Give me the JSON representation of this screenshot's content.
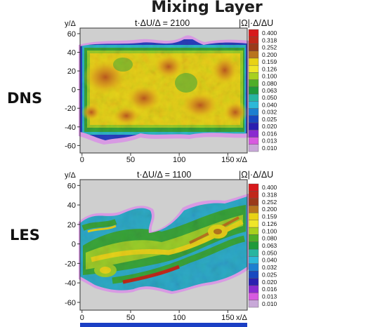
{
  "title": "Mixing Layer",
  "colors": {
    "background_field": "#cfcfcf",
    "accent_bottom_bar": "#1b3fc4"
  },
  "colorbar_values": [
    "0.400",
    "0.318",
    "0.252",
    "0.200",
    "0.159",
    "0.126",
    "0.100",
    "0.080",
    "0.063",
    "0.050",
    "0.040",
    "0.032",
    "0.025",
    "0.020",
    "0.016",
    "0.013",
    "0.010"
  ],
  "colorbar_colors": [
    "#d7191c",
    "#c0281a",
    "#9a3a1a",
    "#b8741e",
    "#e9d215",
    "#f0e628",
    "#a8d01e",
    "#4fae28",
    "#1f9a3a",
    "#26b5a0",
    "#2cb8d8",
    "#1c7fd0",
    "#1848c0",
    "#2a1fb0",
    "#8a2ad0",
    "#d85ae0",
    "#c8a8d8"
  ],
  "panels": [
    {
      "id": "dns",
      "label": "DNS",
      "time_label": "t·ΔU/Δ = 2100",
      "cb_title": "|Ω|·Δ/ΔU",
      "y_axis_label": "y/Δ",
      "x_axis_label": "x/Δ",
      "x_ticks": [
        "0",
        "50",
        "100",
        "150"
      ],
      "y_ticks": [
        "60",
        "40",
        "20",
        "0",
        "-20",
        "-40",
        "-60"
      ]
    },
    {
      "id": "les",
      "label": "LES",
      "time_label": "t·ΔU/Δ = 1100",
      "cb_title": "|Ω|·Δ/ΔU",
      "y_axis_label": "y/Δ",
      "x_axis_label": "x/Δ",
      "x_ticks": [
        "0",
        "50",
        "100",
        "150"
      ],
      "y_ticks": [
        "60",
        "40",
        "20",
        "0",
        "-20",
        "-40",
        "-60"
      ]
    }
  ]
}
